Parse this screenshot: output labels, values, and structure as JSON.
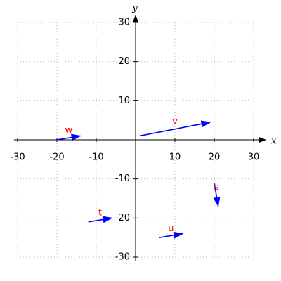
{
  "chart_data": {
    "type": "vector",
    "x_label": "x",
    "y_label": "y",
    "xlim": [
      -30,
      30
    ],
    "ylim": [
      -30,
      30
    ],
    "xticks": [
      -30,
      -20,
      -10,
      10,
      20,
      30
    ],
    "yticks": [
      -30,
      -20,
      -10,
      10,
      20,
      30
    ],
    "grid": true,
    "color": "#0000ff",
    "label_color": "#ff0000",
    "vectors": [
      {
        "name": "v",
        "x0": 1,
        "y0": 1,
        "x1": 19,
        "y1": 4.5
      },
      {
        "name": "w",
        "x0": -20,
        "y0": 0,
        "x1": -14,
        "y1": 1
      },
      {
        "name": "t",
        "x0": -12,
        "y0": -21,
        "x1": -6,
        "y1": -20
      },
      {
        "name": "u",
        "x0": 6,
        "y0": -25,
        "x1": 12,
        "y1": -24
      },
      {
        "name": "s",
        "x0": 20,
        "y0": -11,
        "x1": 21,
        "y1": -17
      }
    ]
  }
}
